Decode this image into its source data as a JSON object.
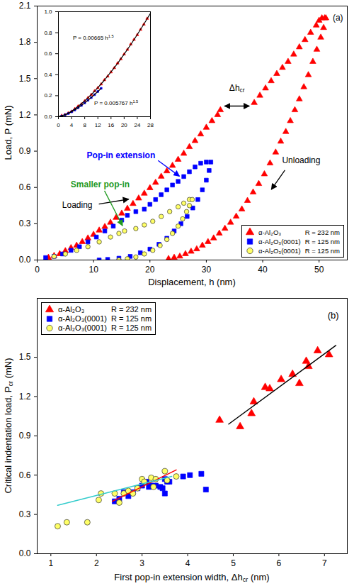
{
  "chart_data": [
    {
      "type": "scatter",
      "xlabel": "Displacement, h (nm)",
      "ylabel": "Load, P (mN)",
      "xlim": [
        0,
        55
      ],
      "xticks": [
        0,
        10,
        20,
        30,
        40,
        50
      ],
      "ylim": [
        0,
        2.1
      ],
      "yticks": [
        {
          "value": 0,
          "label": "0.0"
        },
        0.3,
        0.6,
        0.9,
        1.2,
        1.5,
        1.8,
        2.1
      ],
      "legend": "bottom-right",
      "series": [
        {
          "name": "α-Al₂O₃",
          "radius": "R = 232 nm",
          "color": "#ff0000",
          "marker": "triangle",
          "x": [
            2,
            3,
            4,
            5,
            6,
            7,
            8,
            9,
            10,
            11,
            12,
            13,
            14,
            15,
            16,
            17,
            18,
            19,
            20,
            21,
            22,
            23,
            24,
            25,
            26,
            27,
            28,
            29,
            30,
            31,
            32,
            32.5,
            38.5,
            39.5,
            40.5,
            41.5,
            42.5,
            43.5,
            44.5,
            45.5,
            46.5,
            47.5,
            48.5,
            49.5,
            50,
            50.5,
            51,
            51.2,
            50.8,
            50.3,
            49.6,
            48.9,
            48.1,
            47.3,
            46.5,
            45.7,
            44.9,
            44.1,
            43.2,
            42.3,
            41.3,
            40.3,
            39.3,
            38.3,
            37.3,
            36.3,
            35.3,
            34.3,
            33.3,
            32.3,
            31.3,
            30.3,
            29.3,
            28.3,
            27.3,
            26.3,
            25.3,
            24.3,
            23.3
          ],
          "values": [
            0.02,
            0.035,
            0.05,
            0.075,
            0.1,
            0.12,
            0.15,
            0.18,
            0.21,
            0.245,
            0.275,
            0.31,
            0.35,
            0.385,
            0.425,
            0.465,
            0.51,
            0.55,
            0.595,
            0.64,
            0.69,
            0.735,
            0.78,
            0.83,
            0.88,
            0.935,
            0.985,
            1.04,
            1.095,
            1.15,
            1.2,
            1.24,
            1.3,
            1.36,
            1.42,
            1.48,
            1.54,
            1.59,
            1.64,
            1.7,
            1.76,
            1.82,
            1.88,
            1.94,
            1.98,
            2.0,
            2.0,
            2.0,
            1.92,
            1.84,
            1.74,
            1.64,
            1.53,
            1.43,
            1.33,
            1.24,
            1.15,
            1.06,
            0.98,
            0.89,
            0.8,
            0.71,
            0.63,
            0.56,
            0.49,
            0.42,
            0.36,
            0.31,
            0.26,
            0.22,
            0.18,
            0.15,
            0.12,
            0.09,
            0.07,
            0.05,
            0.03,
            0.02,
            0.01
          ]
        },
        {
          "name": "α-Al₂O₃(0001)",
          "radius": "R = 125 nm",
          "color": "#0000ff",
          "marker": "square",
          "x": [
            1.5,
            3,
            4.5,
            6,
            7.5,
            9,
            10.5,
            12,
            13.5,
            15,
            16,
            17.5,
            19,
            20,
            21,
            22,
            23,
            24,
            25,
            26,
            27,
            28,
            29,
            30,
            30.8,
            30.5,
            30,
            29.3,
            28.5,
            27.6,
            26.6,
            25.5,
            24.3,
            23,
            21.6,
            20,
            18.3,
            16.5,
            14.5,
            12.5,
            11
          ],
          "values": [
            0.02,
            0.03,
            0.05,
            0.08,
            0.11,
            0.15,
            0.19,
            0.24,
            0.28,
            0.33,
            0.37,
            0.4,
            0.42,
            0.46,
            0.5,
            0.54,
            0.58,
            0.62,
            0.65,
            0.69,
            0.73,
            0.77,
            0.8,
            0.81,
            0.81,
            0.74,
            0.66,
            0.58,
            0.5,
            0.43,
            0.36,
            0.3,
            0.24,
            0.18,
            0.13,
            0.09,
            0.06,
            0.03,
            0.015,
            0.005,
            0
          ]
        },
        {
          "name": "α-Al₂O₃(0001)",
          "radius": "R = 125 nm",
          "color": "#ffff66",
          "marker": "circle",
          "x": [
            3,
            5,
            7,
            9,
            11,
            13,
            14.5,
            15.5,
            17.5,
            19,
            20.5,
            22,
            23.5,
            25,
            26,
            27,
            27.5,
            27,
            26.5,
            25.8,
            25,
            24,
            23,
            21.8,
            20.5,
            19,
            17.5,
            16,
            14.5
          ],
          "values": [
            0.03,
            0.05,
            0.08,
            0.11,
            0.15,
            0.19,
            0.22,
            0.24,
            0.26,
            0.29,
            0.32,
            0.36,
            0.4,
            0.44,
            0.47,
            0.5,
            0.5,
            0.45,
            0.4,
            0.34,
            0.28,
            0.22,
            0.17,
            0.12,
            0.08,
            0.05,
            0.025,
            0.01,
            0
          ]
        }
      ],
      "annotations": [
        {
          "text": "Loading"
        },
        {
          "text": "Unloading"
        },
        {
          "text": "Pop-in extension",
          "color": "#0000ff"
        },
        {
          "text": "Smaller pop-in",
          "color": "#1f9a1f"
        },
        {
          "text": [
            {
              "text": "Δh"
            },
            {
              "text": "cr",
              "sub": true
            }
          ]
        },
        {
          "text": "(a)"
        }
      ]
    },
    {
      "type": "scatter",
      "xlim": [
        0,
        28
      ],
      "xticks": [
        0,
        4,
        8,
        12,
        16,
        20,
        24,
        28
      ],
      "ylim": [
        0,
        1
      ],
      "yticks": [
        {
          "value": 0,
          "label": "0.0"
        },
        0.2,
        0.4,
        0.6,
        0.8,
        {
          "value": 1,
          "label": "1.0"
        }
      ],
      "series": [
        {
          "color": "#ff0000",
          "marker": "triangle",
          "x": [
            1,
            2,
            3,
            4,
            5,
            6,
            7,
            8,
            9,
            10,
            11,
            12,
            13,
            14,
            15,
            16,
            17,
            18,
            19,
            20,
            21,
            22,
            23,
            24,
            25,
            26,
            27
          ],
          "values": [
            0.01,
            0.02,
            0.035,
            0.05,
            0.075,
            0.1,
            0.12,
            0.15,
            0.18,
            0.21,
            0.245,
            0.275,
            0.31,
            0.35,
            0.385,
            0.425,
            0.465,
            0.51,
            0.55,
            0.595,
            0.64,
            0.69,
            0.735,
            0.78,
            0.83,
            0.88,
            0.935
          ]
        },
        {
          "color": "#0000ff",
          "marker": "square",
          "x": [
            1,
            2,
            3,
            4,
            5,
            6,
            7,
            8,
            9,
            10,
            11,
            12,
            13
          ],
          "values": [
            0.006,
            0.017,
            0.03,
            0.046,
            0.064,
            0.085,
            0.107,
            0.131,
            0.156,
            0.182,
            0.21,
            0.24,
            0.27
          ]
        },
        {
          "type": "line",
          "color": "#000000",
          "x": [
            0,
            2,
            4,
            6,
            8,
            10,
            12,
            14,
            16,
            18,
            20,
            22,
            24,
            26,
            28
          ],
          "values": [
            0,
            0.019,
            0.053,
            0.098,
            0.15,
            0.21,
            0.276,
            0.348,
            0.426,
            0.508,
            0.595,
            0.686,
            0.782,
            0.882,
            0.985
          ]
        },
        {
          "type": "line",
          "color": "#000000",
          "x": [
            0,
            2,
            4,
            6,
            8,
            10,
            12,
            13
          ],
          "values": [
            0,
            0.016,
            0.046,
            0.085,
            0.131,
            0.182,
            0.24,
            0.27
          ]
        }
      ],
      "annotations": [
        {
          "text": [
            {
              "text": "P = 0.00665 h"
            },
            {
              "text": "1.5",
              "sup": true
            }
          ]
        },
        {
          "text": [
            {
              "text": "P = 0.005767 h"
            },
            {
              "text": "1.5",
              "sup": true
            }
          ]
        }
      ]
    },
    {
      "type": "scatter",
      "xlabel": [
        {
          "text": "First pop-in extension width, Δh"
        },
        {
          "text": "cr",
          "sub": true
        },
        {
          "text": " (nm)"
        }
      ],
      "ylabel": [
        {
          "text": "Critical indentation load, P"
        },
        {
          "text": "cr",
          "sub": true
        },
        {
          "text": " (mN)"
        }
      ],
      "xlim": [
        0.7,
        7.5
      ],
      "xticks": [
        1,
        2,
        3,
        4,
        5,
        6,
        7
      ],
      "ylim": [
        0,
        1.95
      ],
      "yticks": [
        {
          "value": 0,
          "label": "0.0"
        },
        0.3,
        0.6,
        0.9,
        1.2,
        1.5
      ],
      "legend": "top-left",
      "series": [
        {
          "name": "α-Al₂O₃",
          "radius": "R = 232 nm",
          "color": "#ff0000",
          "marker": "triangle",
          "x": [
            4.7,
            5.15,
            5.4,
            5.45,
            5.7,
            5.8,
            6.05,
            6.3,
            6.45,
            6.6,
            6.65,
            6.85,
            7.1
          ],
          "values": [
            1.02,
            0.97,
            1.07,
            1.16,
            1.27,
            1.26,
            1.33,
            1.37,
            1.3,
            1.47,
            1.43,
            1.55,
            1.52
          ]
        },
        {
          "name": "α-Al₂O₃(0001)",
          "radius": "R = 125 nm",
          "color": "#0000ff",
          "marker": "square",
          "x": [
            2.4,
            2.5,
            2.6,
            2.7,
            2.8,
            2.9,
            3.0,
            3.1,
            3.15,
            3.2,
            3.3,
            3.4,
            3.45,
            3.5,
            3.5,
            3.55,
            3.6,
            3.9,
            4.05,
            4.3,
            4.4
          ],
          "values": [
            0.4,
            0.42,
            0.47,
            0.44,
            0.47,
            0.5,
            0.52,
            0.55,
            0.51,
            0.52,
            0.52,
            0.51,
            0.5,
            0.46,
            0.57,
            0.55,
            0.55,
            0.59,
            0.6,
            0.61,
            0.49
          ]
        },
        {
          "name": "α-Al₂O₃(0001)",
          "radius": "R = 125 nm",
          "color": "#ffff66",
          "marker": "circle",
          "x": [
            1.15,
            1.35,
            1.8,
            2.05,
            2.1,
            2.4,
            2.5,
            2.6,
            2.7,
            2.8,
            2.9,
            3.0,
            3.05,
            3.2,
            3.25,
            3.3,
            3.5,
            3.55,
            3.75
          ],
          "values": [
            0.21,
            0.24,
            0.24,
            0.41,
            0.46,
            0.46,
            0.39,
            0.46,
            0.48,
            0.46,
            0.5,
            0.57,
            0.55,
            0.58,
            0.51,
            0.57,
            0.63,
            0.56,
            0.59
          ]
        },
        {
          "type": "line",
          "color": "#000000",
          "x": [
            4.9,
            7.25
          ],
          "values": [
            0.99,
            1.59
          ]
        },
        {
          "type": "line",
          "color": "#ff0000",
          "x": [
            2.35,
            3.75
          ],
          "values": [
            0.4,
            0.64
          ]
        },
        {
          "type": "line",
          "color": "#33cccc",
          "x": [
            1.15,
            3.65
          ],
          "values": [
            0.37,
            0.59
          ]
        }
      ],
      "annotations": [
        {
          "text": "(b)"
        }
      ]
    }
  ]
}
